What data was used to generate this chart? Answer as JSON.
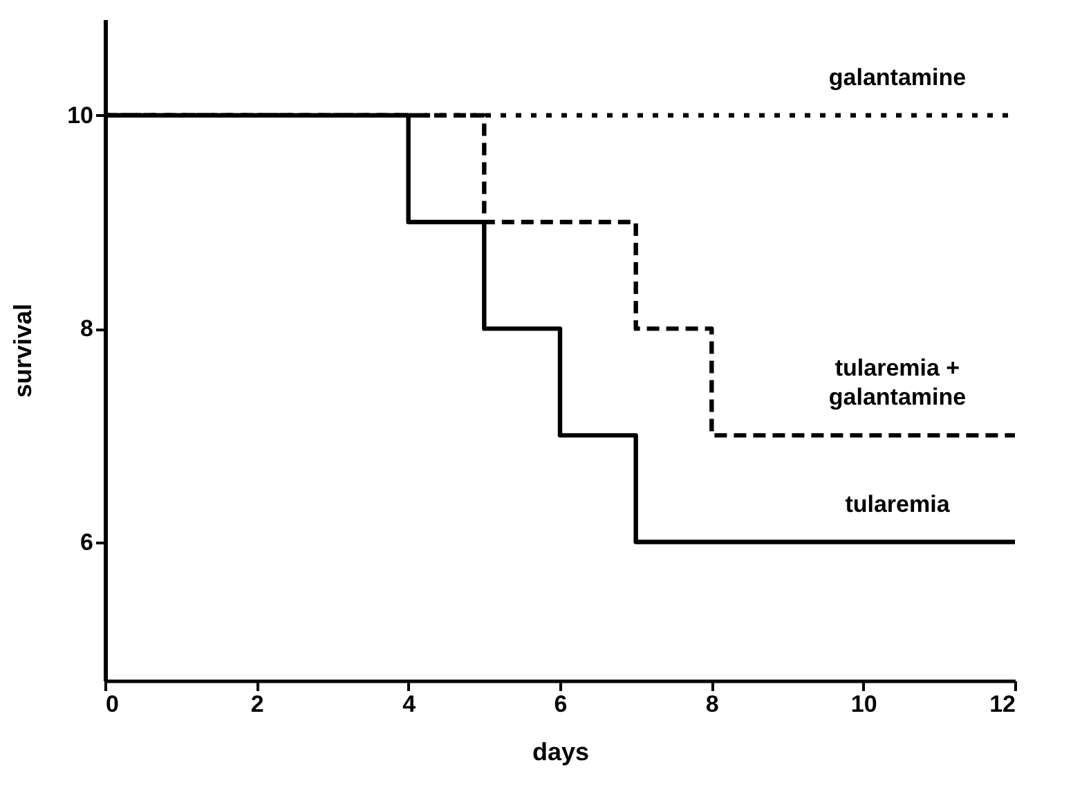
{
  "chart_data": {
    "type": "step",
    "xlabel": "days",
    "ylabel": "survival",
    "xlim": [
      0,
      12
    ],
    "xticks": [
      0,
      2,
      4,
      6,
      8,
      10,
      12
    ],
    "ylim": [
      4.7,
      10.9
    ],
    "yticks": [
      6,
      8,
      10
    ],
    "grid": false,
    "marker": "none",
    "series": [
      {
        "name": "galantamine",
        "color": "#000000",
        "line_style": "dotted",
        "x": [
          0,
          4,
          5,
          6,
          7,
          8,
          12
        ],
        "values": [
          10,
          10,
          10,
          10,
          10,
          10,
          10
        ]
      },
      {
        "name": "tularemia + galantamine",
        "color": "#000000",
        "line_style": "dashed",
        "x": [
          0,
          4,
          5,
          6,
          7,
          8,
          12
        ],
        "values": [
          10,
          10,
          9,
          9,
          8,
          7,
          7
        ]
      },
      {
        "name": "tularemia",
        "color": "#000000",
        "line_style": "solid",
        "x": [
          0,
          4,
          5,
          6,
          7,
          8,
          12
        ],
        "values": [
          10,
          9,
          8,
          7,
          6,
          6,
          6
        ]
      }
    ]
  }
}
